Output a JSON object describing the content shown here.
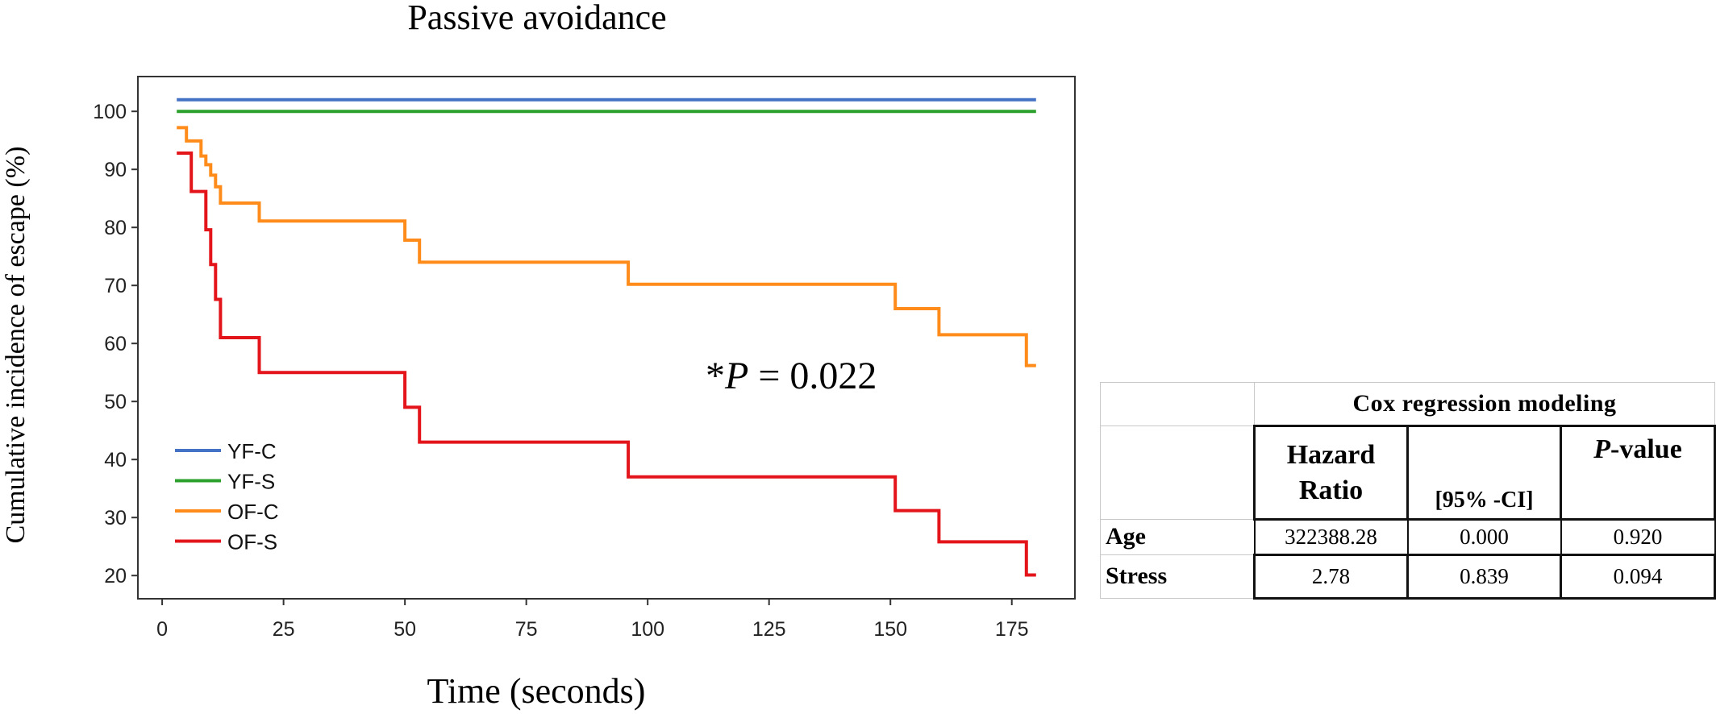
{
  "chart_data": {
    "type": "line",
    "title": "Passive avoidance",
    "xlabel": "Time (seconds)",
    "ylabel": "Cumulative incidence of escape (%)",
    "xlim": [
      -5,
      188
    ],
    "ylim": [
      16,
      106
    ],
    "xticks": [
      0,
      25,
      50,
      75,
      100,
      125,
      150,
      175
    ],
    "yticks": [
      20,
      30,
      40,
      50,
      60,
      70,
      80,
      90,
      100
    ],
    "grid": false,
    "legend_position": "lower-left",
    "annotation": {
      "prefix": "*",
      "italic": "P",
      "suffix": " = 0.022"
    },
    "series": [
      {
        "name": "YF-C",
        "color": "#4472C4",
        "step": true,
        "points": [
          [
            3,
            102
          ],
          [
            180,
            102
          ]
        ]
      },
      {
        "name": "YF-S",
        "color": "#2CA02C",
        "step": true,
        "points": [
          [
            3,
            100
          ],
          [
            180,
            100
          ]
        ]
      },
      {
        "name": "OF-C",
        "color": "#FF8C1A",
        "step": true,
        "points": [
          [
            3,
            97.2
          ],
          [
            5,
            94.9
          ],
          [
            8,
            92.3
          ],
          [
            9,
            90.8
          ],
          [
            10,
            89
          ],
          [
            11,
            87
          ],
          [
            12,
            84.2
          ],
          [
            20,
            81.1
          ],
          [
            50,
            77.8
          ],
          [
            53,
            74
          ],
          [
            96,
            70.2
          ],
          [
            151,
            66
          ],
          [
            160,
            61.5
          ],
          [
            178,
            56.2
          ],
          [
            180,
            56.2
          ]
        ]
      },
      {
        "name": "OF-S",
        "color": "#E3151A",
        "step": true,
        "points": [
          [
            3,
            92.8
          ],
          [
            6,
            86.2
          ],
          [
            9,
            79.6
          ],
          [
            10,
            73.6
          ],
          [
            11,
            67.6
          ],
          [
            12,
            61
          ],
          [
            20,
            55
          ],
          [
            50,
            49
          ],
          [
            53,
            43
          ],
          [
            96,
            37
          ],
          [
            151,
            31.2
          ],
          [
            160,
            25.8
          ],
          [
            178,
            20.1
          ],
          [
            180,
            20.1
          ]
        ]
      }
    ]
  },
  "table": {
    "caption": "Cox regression modeling",
    "col1_line1": "Hazard",
    "col1_line2": "Ratio",
    "col2": "[95% -CI]",
    "col3_italic": "P",
    "col3_rest": "-value",
    "rows": [
      {
        "label": "Age",
        "hr": "322388.28",
        "ci": "0.000",
        "p": "0.920"
      },
      {
        "label": "Stress",
        "hr": "2.78",
        "ci": "0.839",
        "p": "0.094"
      }
    ]
  }
}
